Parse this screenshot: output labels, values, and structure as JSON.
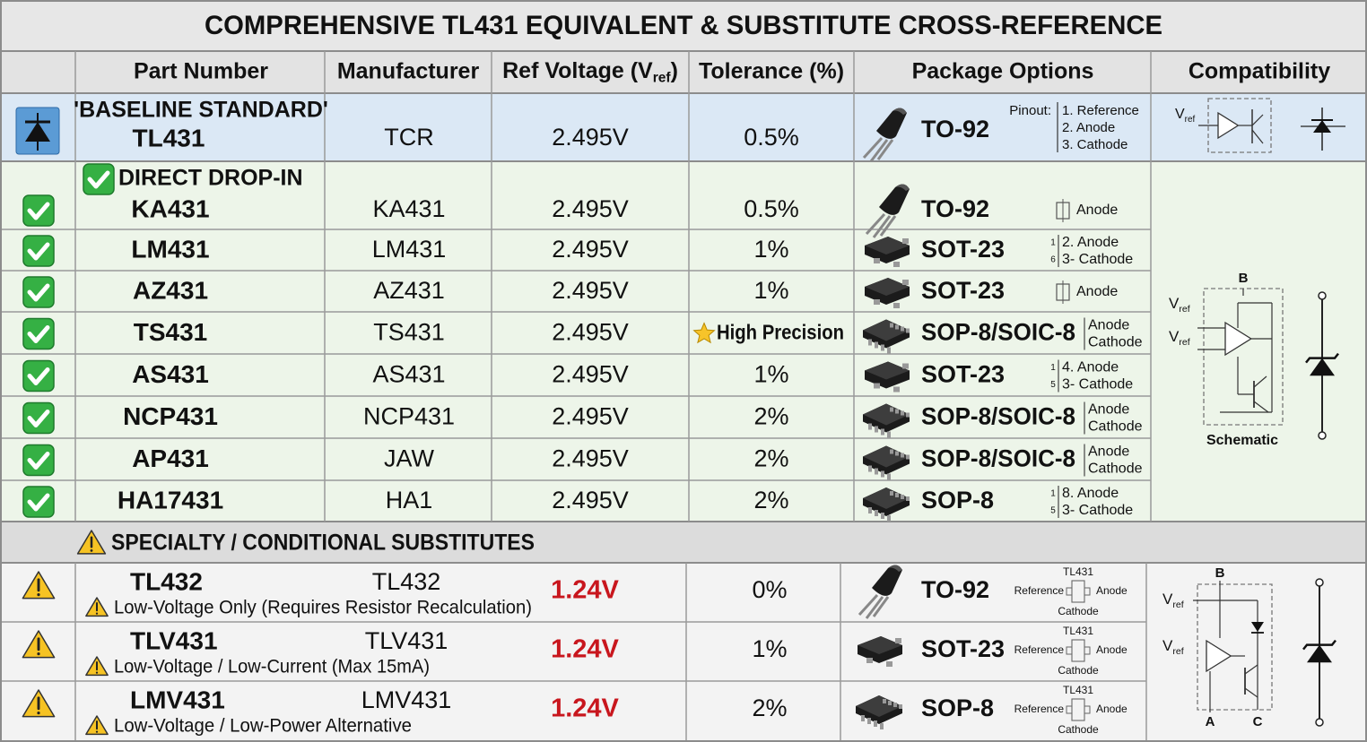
{
  "title": "COMPREHENSIVE TL431 EQUIVALENT & SUBSTITUTE CROSS-REFERENCE",
  "header": {
    "part_number": "Part Number",
    "manufacturer": "Manufacturer",
    "ref_voltage": [
      "Ref Voltage (V",
      "ref",
      ")"
    ],
    "tolerance": "Tolerance (%)",
    "package_options": "Package Options",
    "compatibility": "Compatibility"
  },
  "baseline": {
    "label": "'BASELINE STANDARD'",
    "part": "TL431",
    "manufacturer": "TCR",
    "ref_voltage": "2.495V",
    "tolerance": "0.5%",
    "package": "TO-92",
    "pinout_title": "Pinout:",
    "pins": [
      "1. Reference",
      "2. Anode",
      "3. Cathode"
    ],
    "symbol_label": [
      "V",
      "ref"
    ]
  },
  "direct": {
    "heading": "DIRECT DROP-IN",
    "rows": [
      {
        "part": "KA431",
        "manufacturer": "KA431",
        "ref_voltage": "2.495V",
        "tolerance": "0.5%",
        "package": "TO-92",
        "pins": [
          "Anode"
        ]
      },
      {
        "part": "LM431",
        "manufacturer": "LM431",
        "ref_voltage": "2.495V",
        "tolerance": "1%",
        "package": "SOT-23",
        "pin_marks": [
          "1",
          "6"
        ],
        "pins": [
          "2. Anode",
          "3- Cathode"
        ]
      },
      {
        "part": "AZ431",
        "manufacturer": "AZ431",
        "ref_voltage": "2.495V",
        "tolerance": "1%",
        "package": "SOT-23",
        "pins": [
          "Anode"
        ]
      },
      {
        "part": "TS431",
        "manufacturer": "TS431",
        "ref_voltage": "2.495V",
        "tolerance": "High Precision",
        "icon": "star",
        "package": "SOP-8/SOIC-8",
        "pins": [
          "Anode",
          "Cathode"
        ]
      },
      {
        "part": "AS431",
        "manufacturer": "AS431",
        "ref_voltage": "2.495V",
        "tolerance": "1%",
        "package": "SOT-23",
        "pin_marks": [
          "1",
          "5"
        ],
        "pins": [
          "4. Anode",
          "3- Cathode"
        ]
      },
      {
        "part": "NCP431",
        "manufacturer": "NCP431",
        "ref_voltage": "2.495V",
        "tolerance": "2%",
        "package": "SOP-8/SOIC-8",
        "pins": [
          "Anode",
          "Cathode"
        ]
      },
      {
        "part": "AP431",
        "manufacturer": "JAW",
        "ref_voltage": "2.495V",
        "tolerance": "2%",
        "package": "SOP-8/SOIC-8",
        "pins": [
          "Anode",
          "Cathode"
        ]
      },
      {
        "part": "HA17431",
        "manufacturer": "HA1",
        "ref_voltage": "2.495V",
        "tolerance": "2%",
        "package": "SOP-8",
        "pin_marks": [
          "1",
          "5"
        ],
        "pins": [
          "8. Anode",
          "3- Cathode"
        ]
      }
    ],
    "schematic": {
      "top": "B",
      "inputs": [
        [
          "V",
          "ref"
        ],
        [
          "V",
          "ref"
        ]
      ],
      "caption": "Schematic"
    }
  },
  "specialty": {
    "heading": "SPECIALTY / CONDITIONAL SUBSTITUTES",
    "rows": [
      {
        "part": "TL432",
        "manufacturer": "TL432",
        "note": "Low-Voltage Only (Requires Resistor Recalculation)",
        "ref_voltage": "1.24V",
        "tolerance": "0%",
        "package": "TO-92",
        "pin_diagram": {
          "top": "TL431",
          "left": "Reference",
          "right": "Anode",
          "bottom": "Cathode"
        }
      },
      {
        "part": "TLV431",
        "manufacturer": "TLV431",
        "note": "Low-Voltage / Low-Current (Max 15mA)",
        "ref_voltage": "1.24V",
        "tolerance": "1%",
        "package": "SOT-23",
        "pin_diagram": {
          "top": "TL431",
          "left": "Reference",
          "right": "Anode",
          "bottom": "Cathode"
        }
      },
      {
        "part": "LMV431",
        "manufacturer": "LMV431",
        "note": "Low-Voltage / Low-Power Alternative",
        "ref_voltage": "1.24V",
        "tolerance": "2%",
        "package": "SOP-8",
        "pin_diagram": {
          "top": "TL431",
          "left": "Reference",
          "right": "Anode",
          "bottom": "Cathode"
        }
      }
    ],
    "schematic": {
      "top": "B",
      "inputs": [
        [
          "V",
          "ref"
        ],
        [
          "V",
          "ref"
        ]
      ],
      "bottom": [
        "A",
        "C"
      ]
    }
  }
}
